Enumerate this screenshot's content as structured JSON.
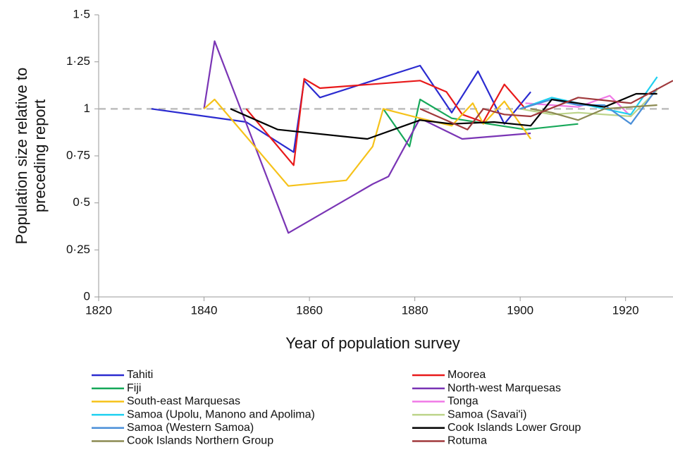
{
  "chart_data": {
    "type": "line",
    "xlabel": "Year of population survey",
    "ylabel": [
      "Population size relative to",
      "preceding report"
    ],
    "xlim": [
      1820,
      1929
    ],
    "xticks": [
      1820,
      1840,
      1860,
      1880,
      1900,
      1920
    ],
    "ylim": [
      0,
      1.5
    ],
    "yticks": [
      {
        "value": 0,
        "label": "0"
      },
      {
        "value": 0.25,
        "label": "0·25"
      },
      {
        "value": 0.5,
        "label": "0·5"
      },
      {
        "value": 0.75,
        "label": "0·75"
      },
      {
        "value": 1,
        "label": "1"
      },
      {
        "value": 1.25,
        "label": "1·25"
      },
      {
        "value": 1.5,
        "label": "1·5"
      }
    ],
    "reference_line": 1,
    "series": [
      {
        "name": "Tahiti",
        "color": "#2b2bd0",
        "x": [
          1830,
          1848,
          1857,
          1859,
          1862,
          1881,
          1887,
          1892,
          1897,
          1902
        ],
        "values": [
          1.0,
          0.93,
          0.77,
          1.15,
          1.06,
          1.23,
          0.98,
          1.2,
          0.92,
          1.09
        ]
      },
      {
        "name": "Moorea",
        "color": "#e8191a",
        "x": [
          1848,
          1857,
          1859,
          1862,
          1881,
          1886,
          1889,
          1893,
          1897,
          1901
        ],
        "values": [
          1.0,
          0.7,
          1.16,
          1.11,
          1.15,
          1.09,
          0.97,
          0.93,
          1.13,
          1.0
        ]
      },
      {
        "name": "Fiji",
        "color": "#17a85a",
        "x": [
          1874,
          1879,
          1881,
          1887,
          1901,
          1911
        ],
        "values": [
          1.0,
          0.8,
          1.05,
          0.95,
          0.89,
          0.92
        ]
      },
      {
        "name": "North-west Marquesas",
        "color": "#7a35b5",
        "x": [
          1840,
          1842,
          1856,
          1872,
          1875,
          1881,
          1889,
          1902
        ],
        "values": [
          1.0,
          1.36,
          0.34,
          0.6,
          0.64,
          0.95,
          0.84,
          0.87
        ]
      },
      {
        "name": "South-east Marquesas",
        "color": "#f6c21a",
        "x": [
          1840,
          1842,
          1856,
          1867,
          1872,
          1874,
          1881,
          1887,
          1891,
          1893,
          1897,
          1902
        ],
        "values": [
          1.0,
          1.05,
          0.59,
          0.62,
          0.8,
          1.0,
          0.95,
          0.91,
          1.03,
          0.92,
          1.04,
          0.84
        ]
      },
      {
        "name": "Tonga",
        "color": "#f07ae6",
        "x": [
          1901,
          1911,
          1917,
          1921
        ],
        "values": [
          1.03,
          1.01,
          1.07,
          0.96
        ]
      },
      {
        "name": "Samoa (Upolu, Manono and Apolima)",
        "color": "#1fd0f0",
        "x": [
          1900,
          1906,
          1911,
          1921,
          1926
        ],
        "values": [
          1.0,
          1.06,
          1.03,
          0.97,
          1.17
        ]
      },
      {
        "name": "Samoa (Savai'i)",
        "color": "#bcd48a",
        "x": [
          1900,
          1906,
          1911,
          1921,
          1926
        ],
        "values": [
          1.0,
          0.97,
          0.98,
          0.96,
          1.1
        ]
      },
      {
        "name": "Samoa (Western Samoa)",
        "color": "#4a8fd8",
        "x": [
          1900,
          1906,
          1911,
          1916,
          1921,
          1926
        ],
        "values": [
          1.0,
          1.05,
          1.02,
          1.02,
          0.92,
          1.11
        ]
      },
      {
        "name": "Cook Islands Lower Group",
        "color": "#000000",
        "x": [
          1845,
          1854,
          1871,
          1881,
          1887,
          1895,
          1902,
          1906,
          1916,
          1922,
          1926
        ],
        "values": [
          1.0,
          0.89,
          0.84,
          0.94,
          0.92,
          0.93,
          0.91,
          1.05,
          1.01,
          1.08,
          1.08
        ]
      },
      {
        "name": "Cook Islands Northern Group",
        "color": "#8c8a52",
        "x": [
          1902,
          1906,
          1911,
          1916,
          1926
        ],
        "values": [
          1.0,
          0.98,
          0.94,
          1.0,
          1.02
        ]
      },
      {
        "name": "Rotuma",
        "color": "#a0393c",
        "x": [
          1881,
          1890,
          1893,
          1897,
          1902,
          1911,
          1921,
          1929
        ],
        "values": [
          1.0,
          0.89,
          1.0,
          0.97,
          0.96,
          1.06,
          1.03,
          1.15
        ]
      }
    ]
  }
}
